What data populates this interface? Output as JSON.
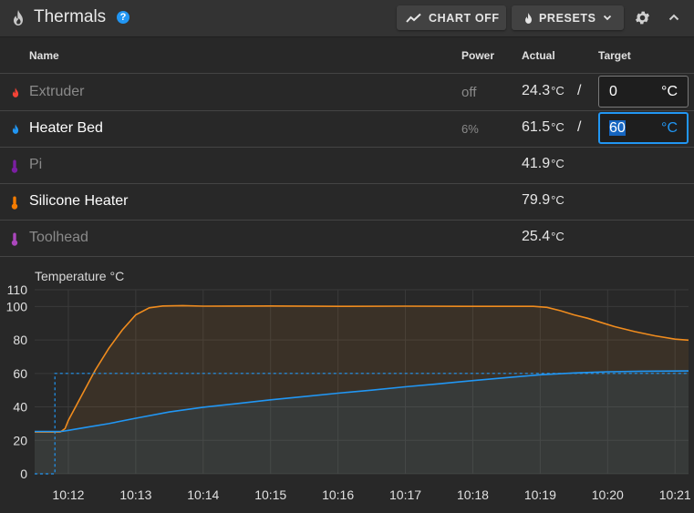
{
  "header": {
    "title": "Thermals",
    "help_label": "?",
    "chart_button_label": "CHART OFF",
    "presets_button_label": "PRESETS"
  },
  "table": {
    "columns": {
      "name": "Name",
      "power": "Power",
      "actual": "Actual",
      "target": "Target"
    },
    "rows": [
      {
        "name": "Extruder",
        "power": "off",
        "actual": "24.3",
        "actual_unit": "°C",
        "slash": "/",
        "target": "0",
        "target_unit": "°C",
        "icon": "flame-icon",
        "icon_color": "#f44336",
        "dim": true
      },
      {
        "name": "Heater Bed",
        "power": "6%",
        "actual": "61.5",
        "actual_unit": "°C",
        "slash": "/",
        "target": "60",
        "target_unit": "°C",
        "icon": "flame-icon",
        "icon_color": "#2196f3",
        "dim": false
      },
      {
        "name": "Pi",
        "actual": "41.9",
        "actual_unit": "°C",
        "icon": "thermometer-icon",
        "icon_color": "#7b1fa2",
        "dim": true
      },
      {
        "name": "Silicone Heater",
        "actual": "79.9",
        "actual_unit": "°C",
        "icon": "thermometer-icon",
        "icon_color": "#f57c00",
        "dim": false
      },
      {
        "name": "Toolhead",
        "actual": "25.4",
        "actual_unit": "°C",
        "icon": "thermometer-icon",
        "icon_color": "#ab47bc",
        "dim": true
      }
    ]
  },
  "colors": {
    "accent": "#2196f3",
    "series_silicone": "#f08c1e",
    "series_bed": "#2196f3"
  },
  "chart_data": {
    "type": "line",
    "ylabel": "Temperature °C",
    "ylim": [
      0,
      110
    ],
    "y_ticks": [
      0,
      20,
      40,
      60,
      80,
      100,
      110
    ],
    "x_ticks": [
      "10:12",
      "10:13",
      "10:14",
      "10:15",
      "10:16",
      "10:17",
      "10:18",
      "10:19",
      "10:20",
      "10:21"
    ],
    "x_range_minutes": [
      11.5,
      21.2
    ],
    "grid": true,
    "series": [
      {
        "key": "silicone",
        "color": "#f08c1e",
        "style": "solid",
        "fill": true,
        "points": [
          [
            11.5,
            25
          ],
          [
            11.88,
            25
          ],
          [
            11.95,
            27
          ],
          [
            12.0,
            32
          ],
          [
            12.2,
            47
          ],
          [
            12.4,
            62
          ],
          [
            12.6,
            75
          ],
          [
            12.8,
            86
          ],
          [
            13.0,
            95
          ],
          [
            13.2,
            99.2
          ],
          [
            13.4,
            100.3
          ],
          [
            13.7,
            100.5
          ],
          [
            14.0,
            100.2
          ],
          [
            15.0,
            100.3
          ],
          [
            16.0,
            100.1
          ],
          [
            17.0,
            100.2
          ],
          [
            18.0,
            100.1
          ],
          [
            18.9,
            100.1
          ],
          [
            19.1,
            99.5
          ],
          [
            19.3,
            97.5
          ],
          [
            19.5,
            95
          ],
          [
            19.7,
            93
          ],
          [
            19.9,
            90.5
          ],
          [
            20.1,
            88
          ],
          [
            20.4,
            85
          ],
          [
            20.7,
            82.5
          ],
          [
            21.0,
            80.5
          ],
          [
            21.2,
            79.9
          ]
        ]
      },
      {
        "key": "bed",
        "color": "#2196f3",
        "style": "solid",
        "fill": true,
        "points": [
          [
            11.5,
            25.3
          ],
          [
            11.9,
            25.3
          ],
          [
            12.0,
            26
          ],
          [
            12.3,
            28
          ],
          [
            12.6,
            30
          ],
          [
            13.0,
            33.2
          ],
          [
            13.5,
            37
          ],
          [
            14.0,
            39.8
          ],
          [
            14.5,
            42
          ],
          [
            15.0,
            44.2
          ],
          [
            15.5,
            46.2
          ],
          [
            16.0,
            48.2
          ],
          [
            16.5,
            50
          ],
          [
            17.0,
            52
          ],
          [
            17.5,
            53.8
          ],
          [
            18.0,
            55.7
          ],
          [
            18.5,
            57.5
          ],
          [
            19.0,
            59.2
          ],
          [
            19.5,
            60.3
          ],
          [
            20.0,
            61
          ],
          [
            20.5,
            61.3
          ],
          [
            21.2,
            61.5
          ]
        ]
      },
      {
        "key": "bed-target",
        "color": "#2196f3",
        "style": "dashed",
        "fill": false,
        "points": [
          [
            11.5,
            0
          ],
          [
            11.8,
            0
          ],
          [
            11.8,
            60
          ],
          [
            21.2,
            60
          ]
        ]
      }
    ]
  }
}
